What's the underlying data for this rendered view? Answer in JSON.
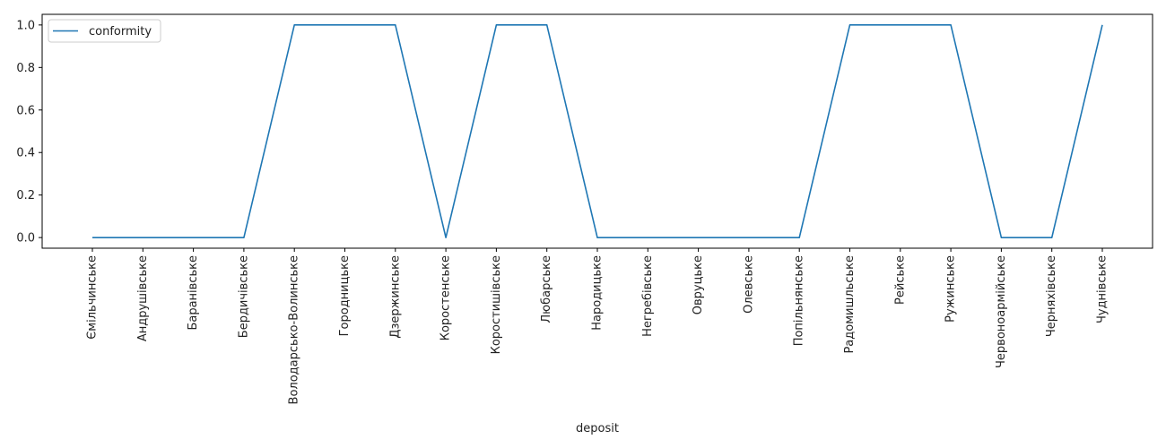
{
  "chart_data": {
    "type": "line",
    "title": "",
    "xlabel": "deposit",
    "ylabel": "",
    "ylim": [
      -0.05,
      1.05
    ],
    "yticks": [
      0.0,
      0.2,
      0.4,
      0.6,
      0.8,
      1.0
    ],
    "ytick_labels": [
      "0.0",
      "0.2",
      "0.4",
      "0.6",
      "0.8",
      "1.0"
    ],
    "grid": false,
    "legend_position": "top-left",
    "categories": [
      "Ємільчинське",
      "Андрушівське",
      "Баранівське",
      "Бердичівське",
      "Володарсько-Волинське",
      "Городницьке",
      "Дзержинське",
      "Коростенське",
      "Коростишівське",
      "Любарське",
      "Народицьке",
      "Негребівське",
      "Овруцьке",
      "Олевське",
      "Попільнянське",
      "Радомишльське",
      "Рейське",
      "Ружинське",
      "Червоноармійське",
      "Черняхівське",
      "Чуднівське"
    ],
    "series": [
      {
        "name": "conformity",
        "color": "#1f77b4",
        "values": [
          0,
          0,
          0,
          0,
          1,
          1,
          1,
          0,
          1,
          1,
          0,
          0,
          0,
          0,
          0,
          1,
          1,
          1,
          0,
          0,
          1
        ]
      }
    ]
  }
}
